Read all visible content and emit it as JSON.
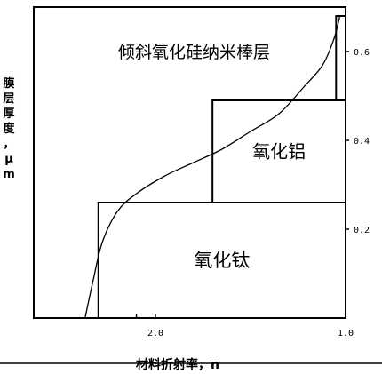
{
  "chart_data": {
    "type": "line",
    "title": "",
    "xlabel": "材料折射率，n",
    "ylabel": "膜层厚度，μm",
    "x_reversed": true,
    "xlim": [
      2.64,
      1.0
    ],
    "ylim": [
      0,
      0.7
    ],
    "x_ticks": [
      {
        "value": 2.0,
        "label": "2.0"
      },
      {
        "value": 1.0,
        "label": "1.0"
      }
    ],
    "y_ticks": [
      {
        "value": 0.2,
        "label": "0.2"
      },
      {
        "value": 0.4,
        "label": "0.4"
      },
      {
        "value": 0.6,
        "label": "0.6"
      }
    ],
    "layers": [
      {
        "label": "氧化钛",
        "n": 2.3,
        "thickness_start": 0.0,
        "thickness_end": 0.26
      },
      {
        "label": "氧化铝",
        "n": 1.7,
        "thickness_start": 0.26,
        "thickness_end": 0.49
      },
      {
        "label": "倾斜氧化硅纳米棒层",
        "n": 1.05,
        "thickness_start": 0.49,
        "thickness_end": 0.68
      }
    ],
    "series": [
      {
        "name": "",
        "x": [
          2.37,
          2.33,
          2.28,
          2.2,
          2.1,
          1.95,
          1.8,
          1.65,
          1.5,
          1.35,
          1.22,
          1.12,
          1.06,
          1.03
        ],
        "y": [
          0.0,
          0.08,
          0.17,
          0.24,
          0.28,
          0.32,
          0.35,
          0.38,
          0.42,
          0.46,
          0.52,
          0.57,
          0.63,
          0.68
        ]
      }
    ]
  }
}
